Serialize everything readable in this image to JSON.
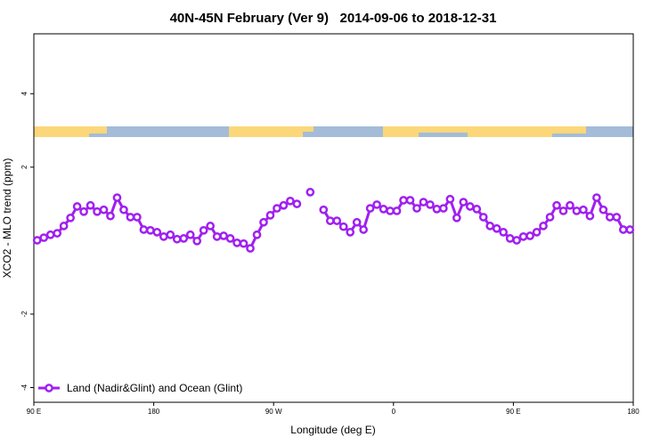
{
  "chart_data": {
    "type": "line",
    "title": "40N-45N February (Ver 9)   2014-09-06 to 2018-12-31",
    "x_label": "Longitude (deg E)",
    "y_label": "XCO2 - MLO trend (ppm)",
    "xlim": [
      90,
      540
    ],
    "xticks": [
      {
        "value": 90,
        "label": "90 E"
      },
      {
        "value": 180,
        "label": "180"
      },
      {
        "value": 270,
        "label": "90 W"
      },
      {
        "value": 360,
        "label": "0"
      },
      {
        "value": 450,
        "label": "90 E"
      },
      {
        "value": 540,
        "label": "180"
      }
    ],
    "ylim": [
      -4.4,
      5.63
    ],
    "yticks": [
      -4,
      -2,
      2,
      4
    ],
    "legend": "bottom-left",
    "x": [
      92.5,
      97.5,
      102.5,
      107.5,
      112.5,
      117.5,
      122.5,
      127.5,
      132.5,
      137.5,
      142.5,
      147.5,
      152.5,
      157.5,
      162.5,
      167.5,
      172.5,
      177.5,
      182.5,
      187.5,
      192.5,
      197.5,
      202.5,
      207.5,
      212.5,
      217.5,
      222.5,
      227.5,
      232.5,
      237.5,
      242.5,
      247.5,
      252.5,
      257.5,
      262.5,
      267.5,
      272.5,
      277.5,
      282.5,
      287.5,
      292.5,
      297.5,
      302.5,
      307.5,
      312.5,
      317.5,
      322.5,
      327.5,
      332.5,
      337.5,
      342.5,
      347.5,
      352.5,
      357.5,
      362.5,
      367.5,
      372.5,
      377.5,
      382.5,
      387.5,
      392.5,
      397.5,
      402.5,
      407.5,
      412.5,
      417.5,
      422.5,
      427.5,
      432.5,
      437.5,
      442.5,
      447.5,
      452.5,
      457.5,
      462.5,
      467.5,
      472.5,
      477.5,
      482.5,
      487.5,
      492.5,
      497.5,
      502.5,
      507.5,
      512.5,
      517.5,
      522.5,
      527.5,
      532.5,
      537.5
    ],
    "series": [
      {
        "name": "Land (Nadir&Glint) and Ocean (Glint)",
        "color": "#a020f0",
        "values": [
          0.01,
          0.08,
          0.16,
          0.2,
          0.4,
          0.62,
          0.93,
          0.79,
          0.96,
          0.79,
          0.84,
          0.67,
          1.17,
          0.84,
          0.64,
          0.64,
          0.3,
          0.28,
          0.23,
          0.11,
          0.16,
          0.04,
          0.06,
          0.16,
          -0.01,
          0.28,
          0.4,
          0.11,
          0.13,
          0.06,
          -0.06,
          -0.08,
          -0.21,
          0.16,
          0.5,
          0.69,
          0.88,
          0.96,
          1.08,
          1.0,
          null,
          1.32,
          null,
          0.84,
          0.54,
          0.54,
          0.38,
          0.23,
          0.5,
          0.3,
          0.88,
          0.98,
          0.86,
          0.81,
          0.81,
          1.1,
          1.1,
          0.88,
          1.05,
          0.98,
          0.86,
          0.88,
          1.13,
          0.62,
          1.05,
          0.93,
          0.86,
          0.64,
          0.4,
          0.33,
          0.23,
          0.06,
          0.01,
          0.11,
          0.13,
          0.23,
          0.4,
          0.64,
          0.96,
          0.81,
          0.96,
          0.81,
          0.84,
          0.67,
          1.17,
          0.84,
          0.64,
          0.64,
          0.3,
          0.3
        ]
      }
    ]
  }
}
